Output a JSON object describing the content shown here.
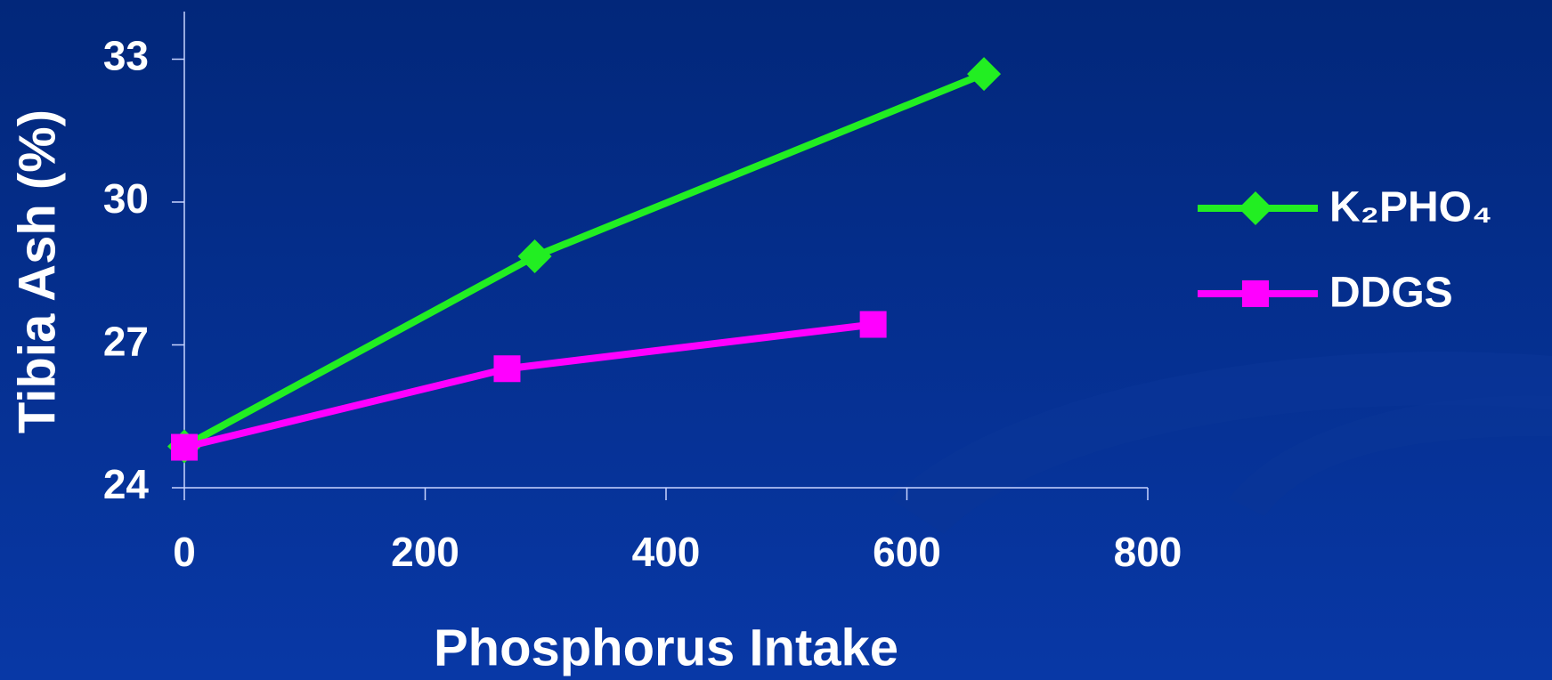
{
  "chart_data": {
    "type": "line",
    "x_label": "Phosphorus Intake",
    "y_label": "Tibia Ash (%)",
    "series": [
      {
        "name": "K₂PHO₄",
        "color": "#22ee22",
        "marker": "diamond",
        "x": [
          0,
          291,
          664
        ],
        "values": [
          24.87,
          28.86,
          32.69
        ]
      },
      {
        "name": "DDGS",
        "color": "#ff00ff",
        "marker": "square",
        "x": [
          0,
          268,
          572
        ],
        "values": [
          24.85,
          26.5,
          27.43
        ]
      }
    ],
    "xlim": [
      0,
      800
    ],
    "xticks": [
      0,
      200,
      400,
      600,
      800
    ],
    "ylim": [
      24,
      34
    ],
    "yticks": [
      24,
      27,
      30,
      33
    ],
    "legend": "right"
  }
}
